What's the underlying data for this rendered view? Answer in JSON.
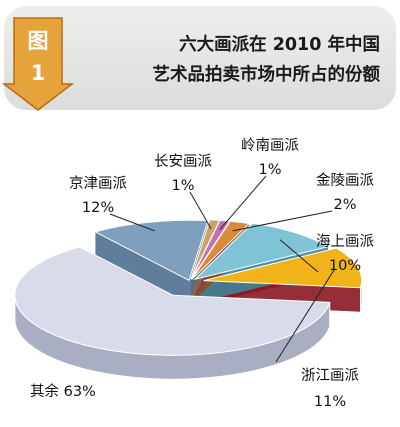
{
  "badge": {
    "top": "图",
    "bottom": "1"
  },
  "title": {
    "line1": "六大画派在 2010 年中国",
    "line2": "艺术品拍卖市场中所占的份额"
  },
  "colors": {
    "header_bg": "#e6e6e4",
    "badge": "#e6a33a",
    "badge_dark": "#b86c14"
  },
  "chart_data": {
    "type": "pie",
    "title": "六大画派在 2010 年中国艺术品拍卖市场中所占的份额",
    "unit": "%",
    "slices": [
      {
        "name": "京津画派",
        "value": 12,
        "label": "12%",
        "color": "#7e9fbe",
        "side": "#4f6f90"
      },
      {
        "name": "长安画派",
        "value": 1,
        "label": "1%",
        "color": "#c9a36b",
        "side": "#8a6a3c"
      },
      {
        "name": "岭南画派",
        "value": 1,
        "label": "1%",
        "color": "#c56fae",
        "side": "#7e3b6d"
      },
      {
        "name": "金陵画派",
        "value": 2,
        "label": "2%",
        "color": "#d98a3a",
        "side": "#8e4f19"
      },
      {
        "name": "海上画派",
        "value": 10,
        "label": "10%",
        "color": "#7fc3d6",
        "side": "#3f8499"
      },
      {
        "name": "浙江画派",
        "value": 11,
        "label": "11%",
        "color": "#f0b31a",
        "side": "#8a1722"
      },
      {
        "name": "其余",
        "value": 63,
        "label": "63%",
        "color": "#d8dcea",
        "side": "#a9aec2"
      }
    ]
  }
}
